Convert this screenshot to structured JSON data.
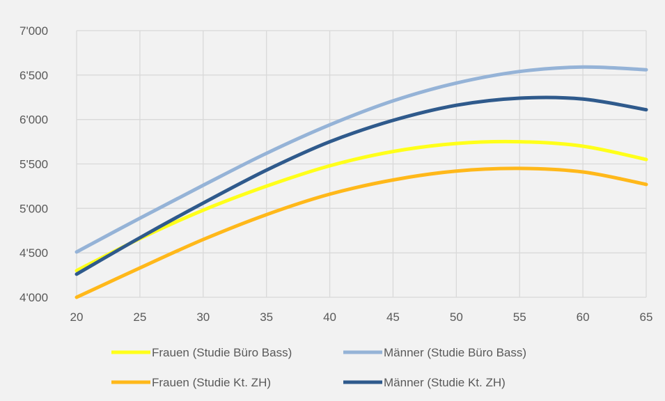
{
  "chart_data": {
    "type": "line",
    "title": "",
    "xlabel": "",
    "ylabel": "",
    "x": [
      20,
      25,
      30,
      35,
      40,
      45,
      50,
      55,
      60,
      65
    ],
    "xlim": [
      20,
      65
    ],
    "ylim": [
      4000,
      7000
    ],
    "x_ticks": [
      "20",
      "25",
      "30",
      "35",
      "40",
      "45",
      "50",
      "55",
      "60",
      "65"
    ],
    "y_ticks": [
      "4'000",
      "4'500",
      "5'000",
      "5'500",
      "6'000",
      "6'500",
      "7'000"
    ],
    "grid": true,
    "legend_position": "bottom",
    "series": [
      {
        "name": "Frauen (Studie Büro Bass)",
        "color": "#ffff1a",
        "values": [
          4300,
          4660,
          4980,
          5250,
          5480,
          5640,
          5730,
          5750,
          5700,
          5550
        ]
      },
      {
        "name": "Männer (Studie Büro Bass)",
        "color": "#95b3d7",
        "values": [
          4510,
          4890,
          5260,
          5620,
          5940,
          6210,
          6410,
          6540,
          6590,
          6560
        ]
      },
      {
        "name": "Frauen (Studie Kt. ZH)",
        "color": "#ffb81a",
        "values": [
          4000,
          4330,
          4650,
          4930,
          5160,
          5320,
          5420,
          5450,
          5410,
          5270
        ]
      },
      {
        "name": "Männer (Studie Kt. ZH)",
        "color": "#2f5a8c",
        "values": [
          4260,
          4670,
          5060,
          5430,
          5750,
          5990,
          6160,
          6240,
          6230,
          6110
        ]
      }
    ]
  }
}
